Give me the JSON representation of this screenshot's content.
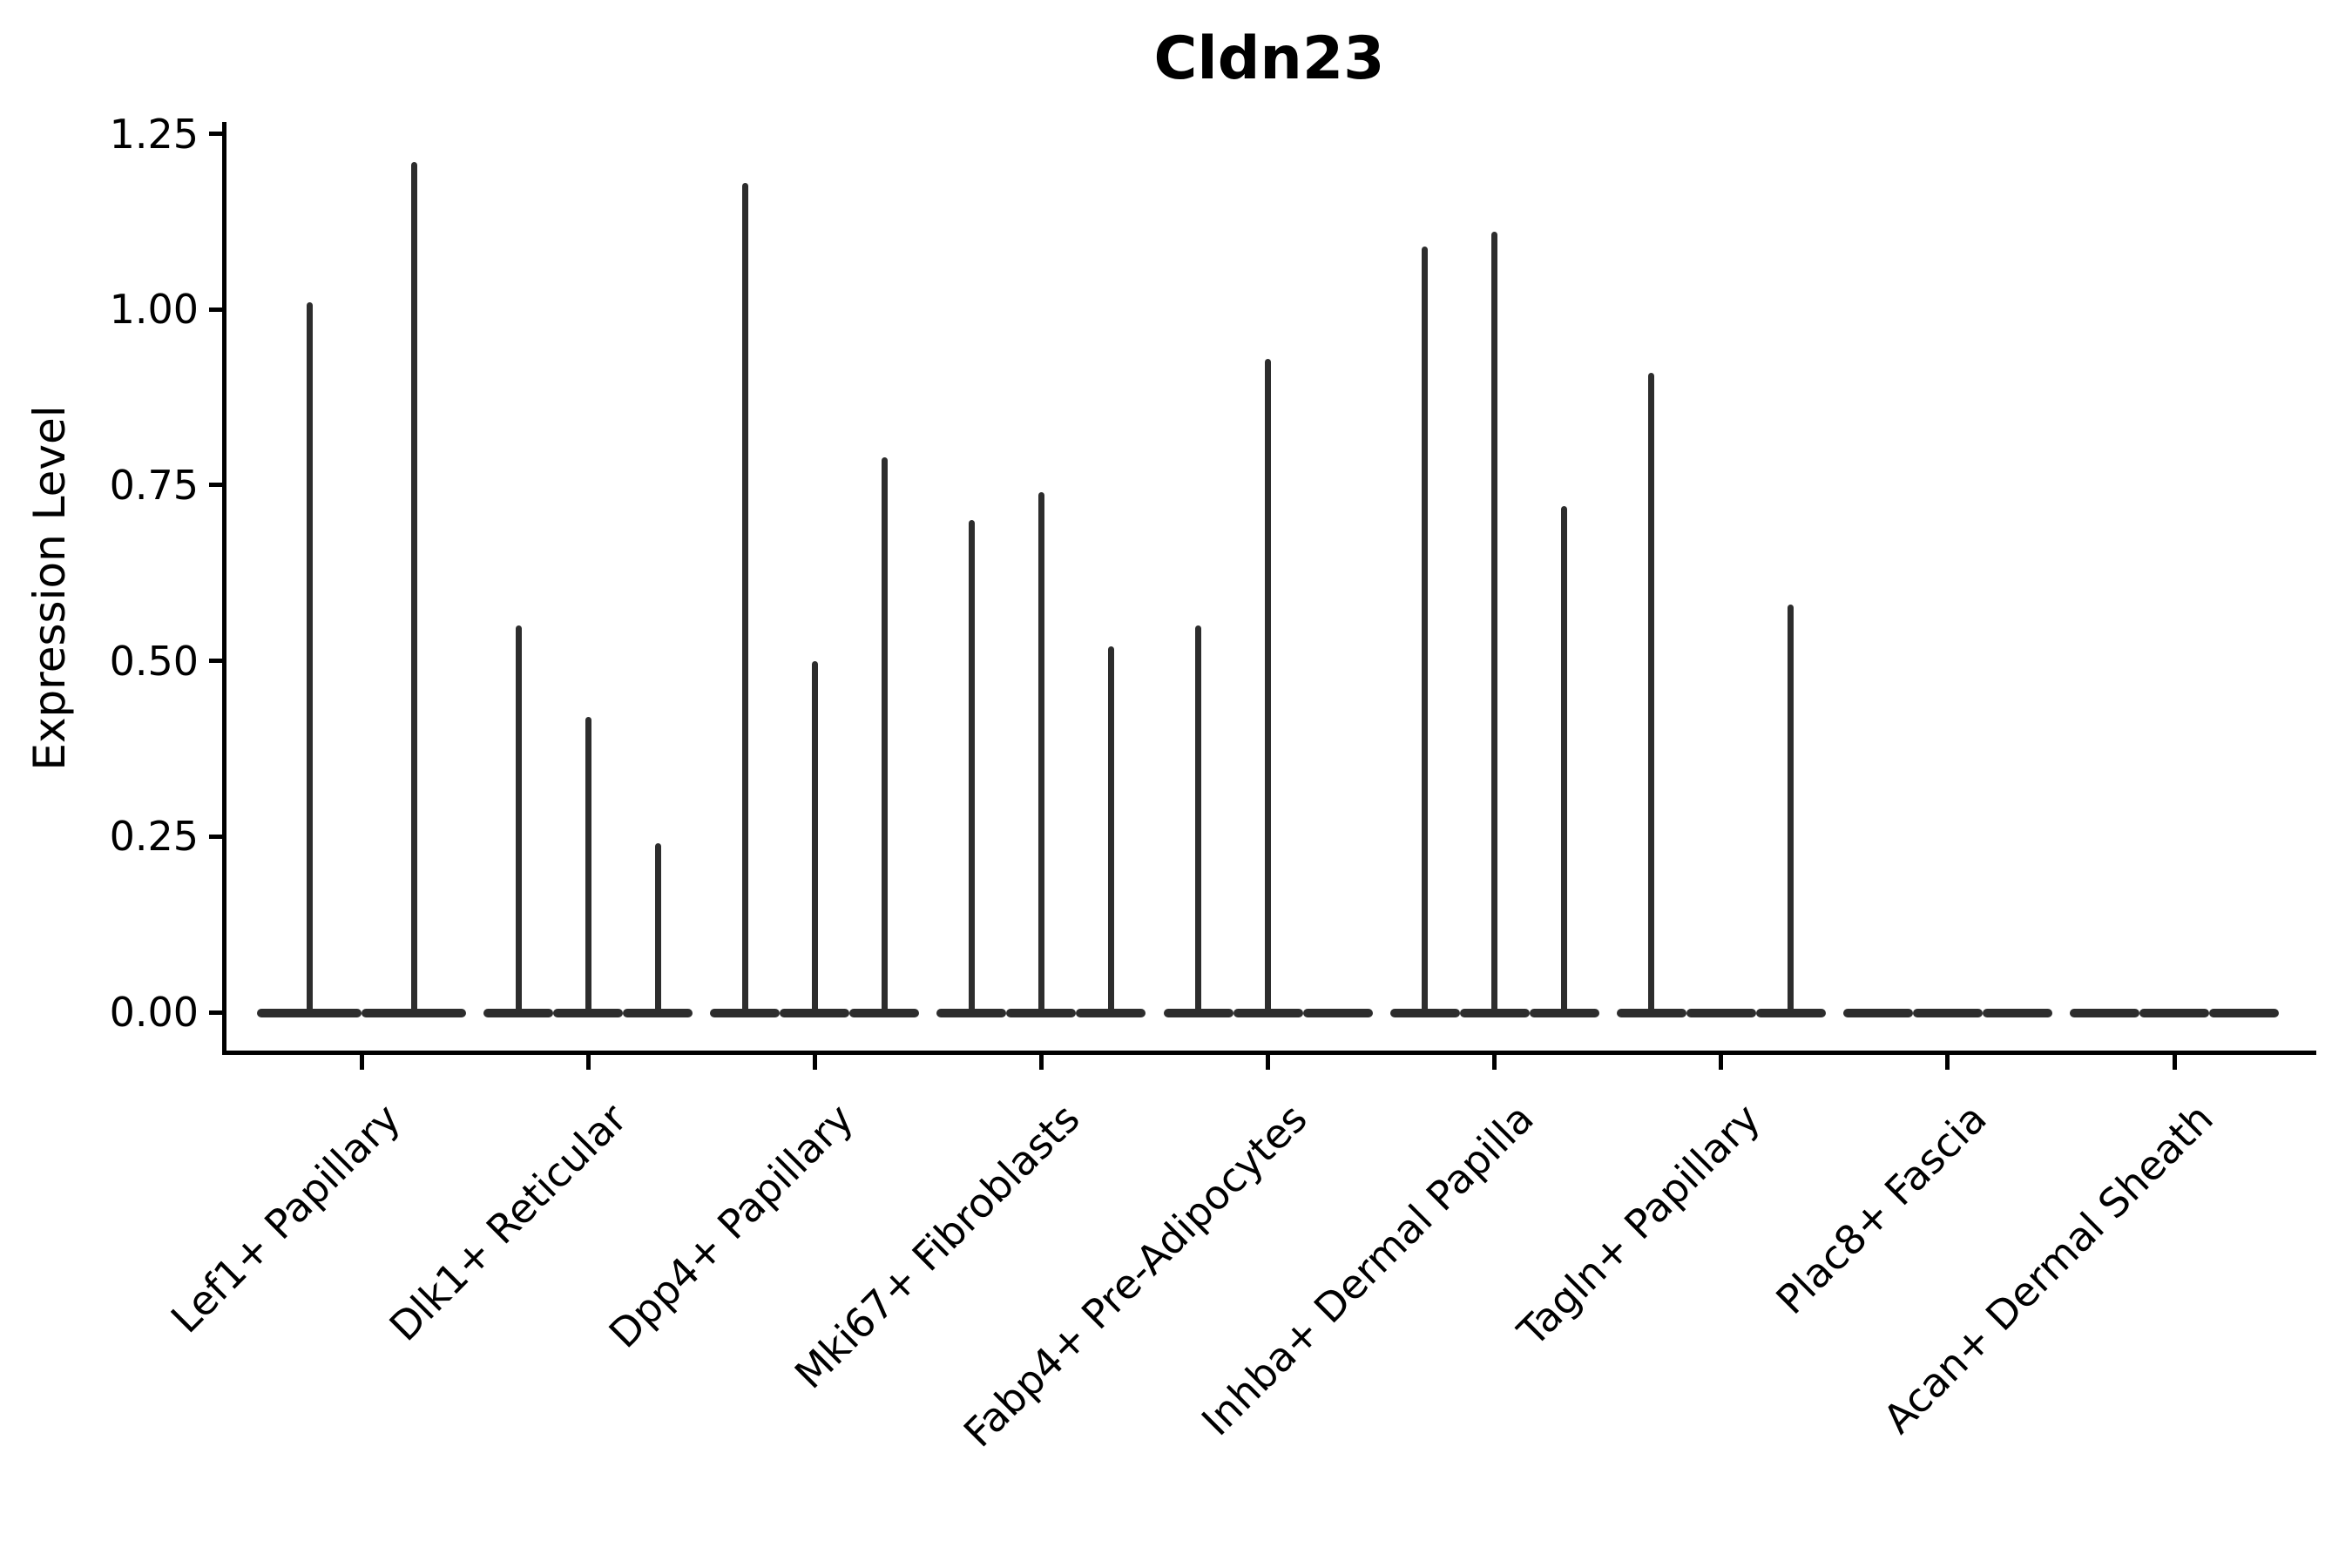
{
  "figure": {
    "title": "Cldn23"
  },
  "chart_data": {
    "type": "violin",
    "title": "Cldn23",
    "xlabel": "",
    "ylabel": "Expression Level",
    "ylim": [
      0,
      1.25
    ],
    "ytick_values": [
      0,
      0.25,
      0.5,
      0.75,
      1.0,
      1.25
    ],
    "ytick_labels": [
      "0.00",
      "0.25",
      "0.50",
      "0.75",
      "1.00",
      "1.25"
    ],
    "grid": false,
    "legend_position": "none",
    "x_label_rotation_deg": 45,
    "categories": [
      "Lef1+ Papillary",
      "Dlk1+ Reticular",
      "Dpp4+ Papillary",
      "Mki67+ Fibroblasts",
      "Fabp4+ Pre-Adipocytes",
      "Inhba+ Dermal Papilla",
      "Tagln+ Papillary",
      "Plac8+ Fascia",
      "Acan+ Dermal Sheath"
    ],
    "groups": [
      {
        "category": "Lef1+ Papillary",
        "violin_maxima": [
          1.01,
          1.21
        ]
      },
      {
        "category": "Dlk1+ Reticular",
        "violin_maxima": [
          0.55,
          0.42,
          0.24
        ]
      },
      {
        "category": "Dpp4+ Papillary",
        "violin_maxima": [
          1.18,
          0.5,
          0.79
        ]
      },
      {
        "category": "Mki67+ Fibroblasts",
        "violin_maxima": [
          0.7,
          0.74,
          0.52
        ]
      },
      {
        "category": "Fabp4+ Pre-Adipocytes",
        "violin_maxima": [
          0.55,
          0.93,
          0
        ]
      },
      {
        "category": "Inhba+ Dermal Papilla",
        "violin_maxima": [
          1.09,
          1.11,
          0.72
        ]
      },
      {
        "category": "Tagln+ Papillary",
        "violin_maxima": [
          0.91,
          0,
          0.58
        ]
      },
      {
        "category": "Plac8+ Fascia",
        "violin_maxima": [
          0,
          0,
          0
        ]
      },
      {
        "category": "Acan+ Dermal Sheath",
        "violin_maxima": [
          0,
          0,
          0
        ]
      }
    ],
    "colors": {
      "violin_ink": "#2d2d2d",
      "axis": "#000000",
      "text": "#000000",
      "background": "#ffffff"
    }
  }
}
